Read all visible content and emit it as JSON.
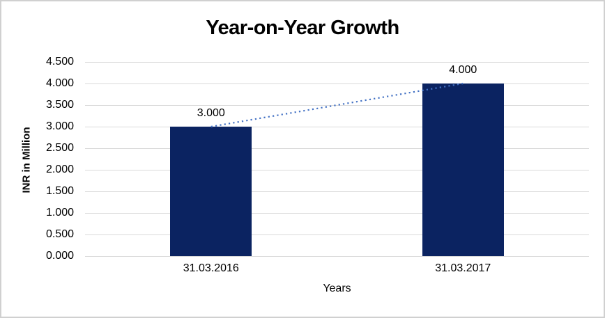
{
  "chart_data": {
    "type": "bar",
    "title": "Year-on-Year Growth",
    "xlabel": "Years",
    "ylabel": "INR in Million",
    "categories": [
      "31.03.2016",
      "31.03.2017"
    ],
    "values": [
      3.0,
      4.0
    ],
    "value_labels": [
      "3.000",
      "4.000"
    ],
    "ytick_labels": [
      "4.500",
      "4.000",
      "3.500",
      "3.000",
      "2.500",
      "2.000",
      "1.500",
      "1.000",
      "0.500",
      "0.000"
    ],
    "ylim": [
      0,
      4.5
    ],
    "grid": true,
    "legend": false,
    "trendline": {
      "style": "dotted",
      "from_value": 3.0,
      "to_value": 4.0
    },
    "colors": {
      "bar": "#0b2361",
      "trendline": "#4472c4",
      "gridline": "#d9d9d9",
      "text": "#000000",
      "figure_border": "#d0d0d0",
      "background": "#ffffff"
    }
  }
}
